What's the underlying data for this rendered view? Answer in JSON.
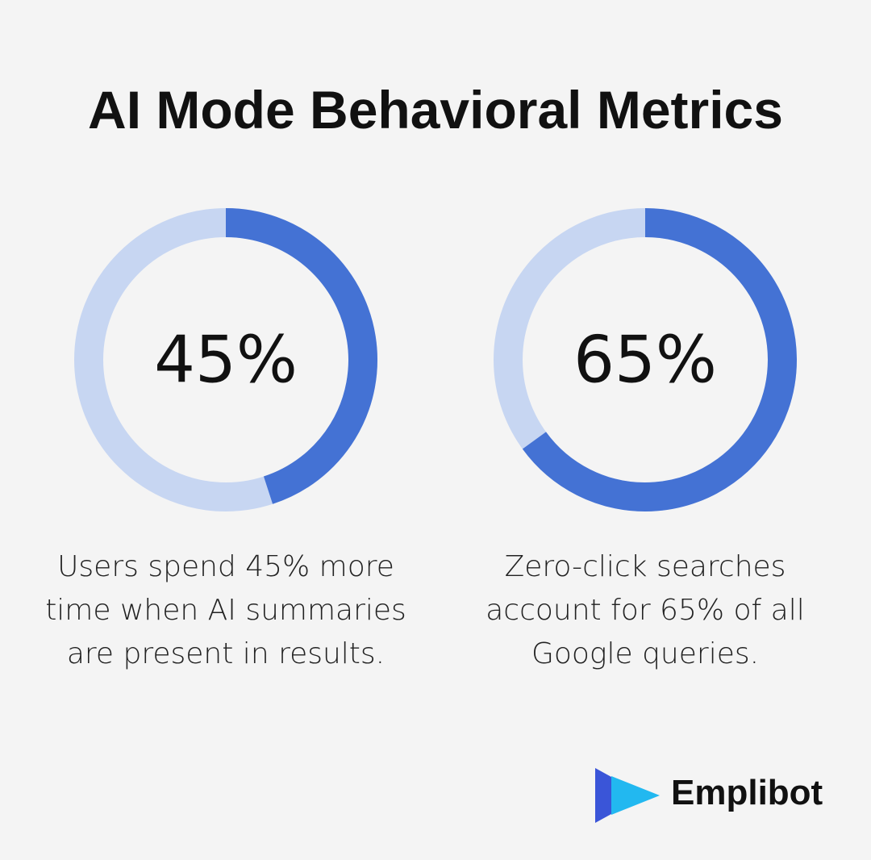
{
  "title": "AI Mode Behavioral Metrics",
  "chart_data": [
    {
      "type": "donut",
      "values": [
        45
      ],
      "value_labels": [
        "45%"
      ],
      "ylim": [
        0,
        100
      ],
      "caption": "Users spend 45% more time when AI summaries are present in results.",
      "color": "#4472d4",
      "track_color": "#c7d6f2"
    },
    {
      "type": "donut",
      "values": [
        65
      ],
      "value_labels": [
        "65%"
      ],
      "ylim": [
        0,
        100
      ],
      "caption": "Zero-click searches account for 65% of all Google queries.",
      "color": "#4472d4",
      "track_color": "#c7d6f2"
    }
  ],
  "brand": "Emplibot"
}
